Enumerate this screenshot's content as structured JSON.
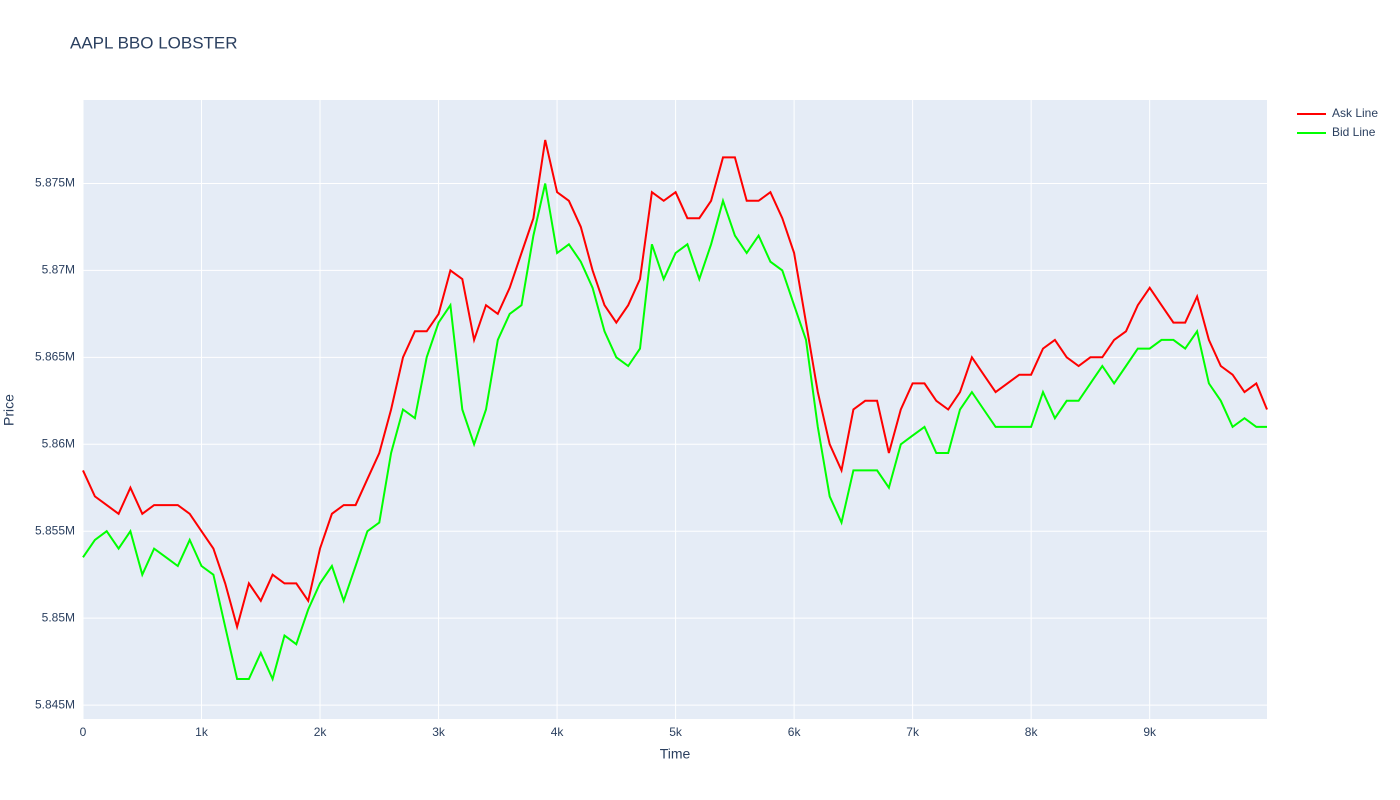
{
  "chart_data": {
    "type": "line",
    "title": "AAPL BBO LOBSTER",
    "x_label": "Time",
    "y_label": "Price",
    "x": [
      0,
      100,
      200,
      300,
      400,
      500,
      600,
      700,
      800,
      900,
      1000,
      1100,
      1200,
      1300,
      1400,
      1500,
      1600,
      1700,
      1800,
      1900,
      2000,
      2100,
      2200,
      2300,
      2400,
      2500,
      2600,
      2700,
      2800,
      2900,
      3000,
      3100,
      3200,
      3300,
      3400,
      3500,
      3600,
      3700,
      3800,
      3900,
      4000,
      4100,
      4200,
      4300,
      4400,
      4500,
      4600,
      4700,
      4800,
      4900,
      5000,
      5100,
      5200,
      5300,
      5400,
      5500,
      5600,
      5700,
      5800,
      5900,
      6000,
      6100,
      6200,
      6300,
      6400,
      6500,
      6600,
      6700,
      6800,
      6900,
      7000,
      7100,
      7200,
      7300,
      7400,
      7500,
      7600,
      7700,
      7800,
      7900,
      8000,
      8100,
      8200,
      8300,
      8400,
      8500,
      8600,
      8700,
      8800,
      8900,
      9000,
      9100,
      9200,
      9300,
      9400,
      9500,
      9600,
      9700,
      9800,
      9900,
      9990
    ],
    "series": [
      {
        "name": "Ask Line",
        "color": "#ff0000",
        "values": [
          5858500,
          5857000,
          5856500,
          5856000,
          5857500,
          5856000,
          5856500,
          5856500,
          5856500,
          5856000,
          5855000,
          5854000,
          5852000,
          5849500,
          5852000,
          5851000,
          5852500,
          5852000,
          5852000,
          5851000,
          5854000,
          5856000,
          5856500,
          5856500,
          5858000,
          5859500,
          5862000,
          5865000,
          5866500,
          5866500,
          5867500,
          5870000,
          5869500,
          5866000,
          5868000,
          5867500,
          5869000,
          5871000,
          5873000,
          5877500,
          5874500,
          5874000,
          5872500,
          5870000,
          5868000,
          5867000,
          5868000,
          5869500,
          5874500,
          5874000,
          5874500,
          5873000,
          5873000,
          5874000,
          5876500,
          5876500,
          5874000,
          5874000,
          5874500,
          5873000,
          5871000,
          5867000,
          5863000,
          5860000,
          5858500,
          5862000,
          5862500,
          5862500,
          5859500,
          5862000,
          5863500,
          5863500,
          5862500,
          5862000,
          5863000,
          5865000,
          5864000,
          5863000,
          5863500,
          5864000,
          5864000,
          5865500,
          5866000,
          5865000,
          5864500,
          5865000,
          5865000,
          5866000,
          5866500,
          5868000,
          5869000,
          5868000,
          5867000,
          5867000,
          5868500,
          5866000,
          5864500,
          5864000,
          5863000,
          5863500,
          5862000
        ]
      },
      {
        "name": "Bid Line",
        "color": "#00ff00",
        "values": [
          5853500,
          5854500,
          5855000,
          5854000,
          5855000,
          5852500,
          5854000,
          5853500,
          5853000,
          5854500,
          5853000,
          5852500,
          5849500,
          5846500,
          5846500,
          5848000,
          5846500,
          5849000,
          5848500,
          5850500,
          5852000,
          5853000,
          5851000,
          5853000,
          5855000,
          5855500,
          5859500,
          5862000,
          5861500,
          5865000,
          5867000,
          5868000,
          5862000,
          5860000,
          5862000,
          5866000,
          5867500,
          5868000,
          5872000,
          5875000,
          5871000,
          5871500,
          5870500,
          5869000,
          5866500,
          5865000,
          5864500,
          5865500,
          5871500,
          5869500,
          5871000,
          5871500,
          5869500,
          5871500,
          5874000,
          5872000,
          5871000,
          5872000,
          5870500,
          5870000,
          5868000,
          5866000,
          5861000,
          5857000,
          5855500,
          5858500,
          5858500,
          5858500,
          5857500,
          5860000,
          5860500,
          5861000,
          5859500,
          5859500,
          5862000,
          5863000,
          5862000,
          5861000,
          5861000,
          5861000,
          5861000,
          5863000,
          5861500,
          5862500,
          5862500,
          5863500,
          5864500,
          5863500,
          5864500,
          5865500,
          5865500,
          5866000,
          5866000,
          5865500,
          5866500,
          5863500,
          5862500,
          5861000,
          5861500,
          5861000,
          5861000
        ]
      }
    ],
    "xlim": [
      0,
      9990
    ],
    "xticks": [
      0,
      {
        "value": 1000,
        "label": "1k"
      },
      {
        "value": 2000,
        "label": "2k"
      },
      {
        "value": 3000,
        "label": "3k"
      },
      {
        "value": 4000,
        "label": "4k"
      },
      {
        "value": 5000,
        "label": "5k"
      },
      {
        "value": 6000,
        "label": "6k"
      },
      {
        "value": 7000,
        "label": "7k"
      },
      {
        "value": 8000,
        "label": "8k"
      },
      {
        "value": 9000,
        "label": "9k"
      }
    ],
    "ylim": [
      5844200,
      5879800
    ],
    "yticks": [
      {
        "value": 5845000,
        "label": "5.845M"
      },
      {
        "value": 5850000,
        "label": "5.85M"
      },
      {
        "value": 5855000,
        "label": "5.855M"
      },
      {
        "value": 5860000,
        "label": "5.86M"
      },
      {
        "value": 5865000,
        "label": "5.865M"
      },
      {
        "value": 5870000,
        "label": "5.87M"
      },
      {
        "value": 5875000,
        "label": "5.875M"
      }
    ],
    "grid": true,
    "legend": "top-right"
  }
}
